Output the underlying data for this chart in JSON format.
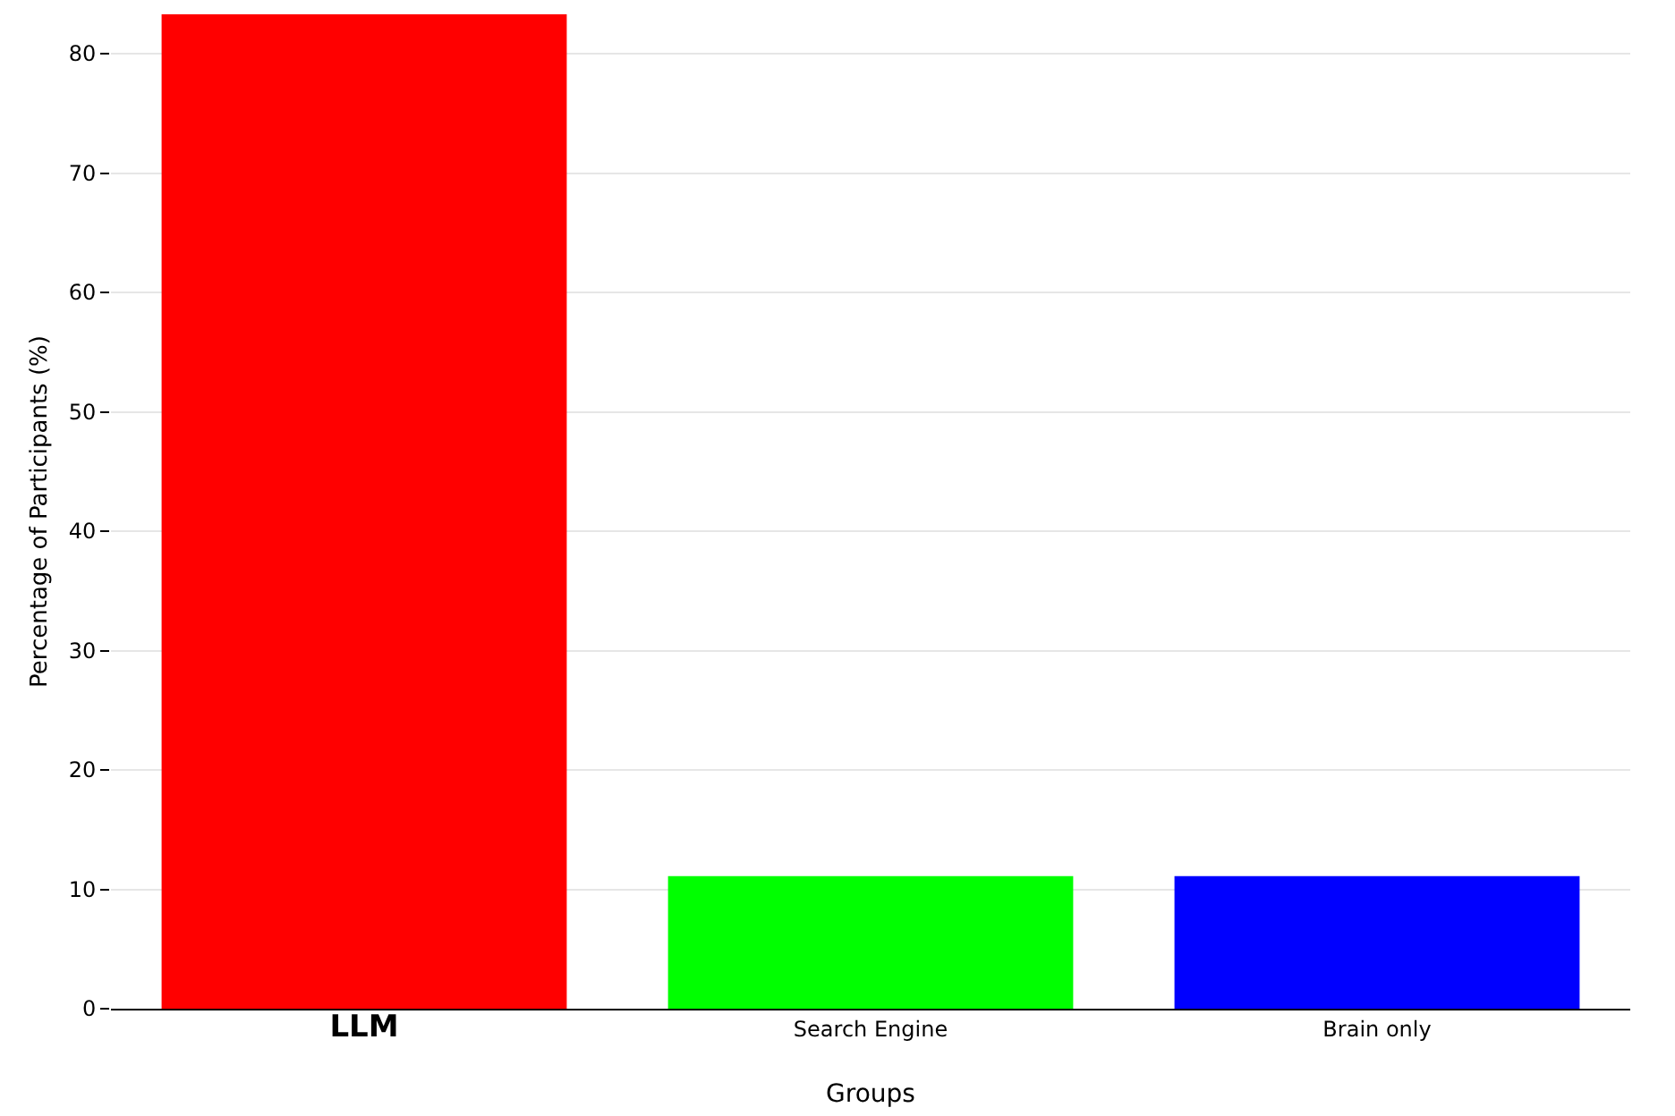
{
  "chart_data": {
    "type": "bar",
    "xlabel": "Groups",
    "ylabel": "Percentage of Participants (%)",
    "categories": [
      "LLM",
      "Search Engine",
      "Brain only"
    ],
    "values": [
      83.3,
      11.1,
      11.1
    ],
    "colors": [
      "#ff0000",
      "#00ff00",
      "#0000ff"
    ],
    "ylim": [
      0,
      83.3
    ],
    "yticks": [
      0,
      10,
      20,
      30,
      40,
      50,
      60,
      70,
      80
    ],
    "grid": "y"
  }
}
